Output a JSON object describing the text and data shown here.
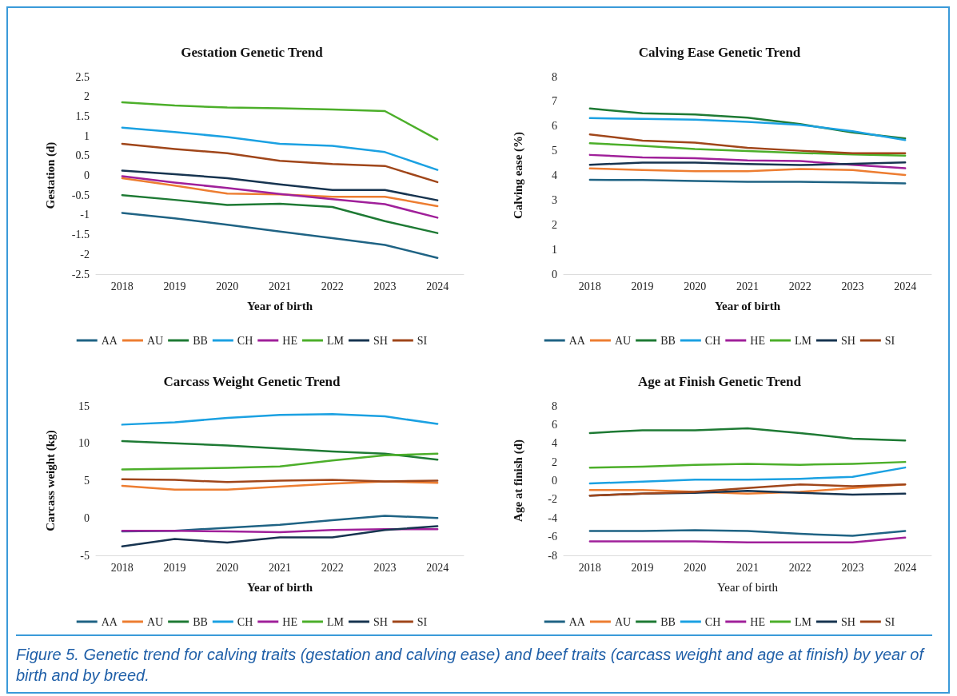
{
  "chart_data": [
    {
      "type": "line",
      "title": "Gestation Genetic Trend",
      "xlabel": "Year of birth",
      "ylabel": "Gestation (d)",
      "categories": [
        "2018",
        "2019",
        "2020",
        "2021",
        "2022",
        "2023",
        "2024"
      ],
      "ylim": [
        -2.5,
        2.5
      ],
      "yticks": [
        -2.5,
        -2,
        -1.5,
        -1,
        -0.5,
        0,
        0.5,
        1,
        1.5,
        2,
        2.5
      ],
      "grid": false,
      "legend": "bottom",
      "marker": "none",
      "series": [
        {
          "name": "AA",
          "color": "#1f6384",
          "values": [
            -0.95,
            -1.09,
            -1.25,
            -1.42,
            -1.59,
            -1.76,
            -2.09
          ]
        },
        {
          "name": "AU",
          "color": "#ed7d31",
          "values": [
            -0.07,
            -0.26,
            -0.46,
            -0.48,
            -0.54,
            -0.54,
            -0.78
          ]
        },
        {
          "name": "BB",
          "color": "#1e7a34",
          "values": [
            -0.5,
            -0.62,
            -0.75,
            -0.72,
            -0.8,
            -1.16,
            -1.46
          ]
        },
        {
          "name": "CH",
          "color": "#1ba1e2",
          "values": [
            1.21,
            1.1,
            0.97,
            0.8,
            0.75,
            0.59,
            0.14
          ]
        },
        {
          "name": "HE",
          "color": "#a0209a",
          "values": [
            -0.02,
            -0.18,
            -0.32,
            -0.47,
            -0.6,
            -0.73,
            -1.07
          ]
        },
        {
          "name": "LM",
          "color": "#4caf2a",
          "values": [
            1.85,
            1.77,
            1.72,
            1.7,
            1.67,
            1.63,
            0.91
          ]
        },
        {
          "name": "SH",
          "color": "#173450",
          "values": [
            0.12,
            0.03,
            -0.07,
            -0.23,
            -0.37,
            -0.37,
            -0.63
          ]
        },
        {
          "name": "SI",
          "color": "#a0461a",
          "values": [
            0.8,
            0.67,
            0.56,
            0.37,
            0.29,
            0.24,
            -0.17
          ]
        }
      ]
    },
    {
      "type": "line",
      "title": "Calving Ease Genetic Trend",
      "xlabel": "Year of birth",
      "ylabel": "Calving ease (%)",
      "categories": [
        "2018",
        "2019",
        "2020",
        "2021",
        "2022",
        "2023",
        "2024"
      ],
      "ylim": [
        0,
        8
      ],
      "yticks": [
        0,
        1,
        2,
        3,
        4,
        5,
        6,
        7,
        8
      ],
      "grid": false,
      "legend": "bottom",
      "marker": "none",
      "series": [
        {
          "name": "AA",
          "color": "#1f6384",
          "values": [
            3.82,
            3.81,
            3.77,
            3.74,
            3.74,
            3.72,
            3.68
          ]
        },
        {
          "name": "AU",
          "color": "#ed7d31",
          "values": [
            4.28,
            4.22,
            4.17,
            4.17,
            4.26,
            4.22,
            4.02
          ]
        },
        {
          "name": "BB",
          "color": "#1e7a34",
          "values": [
            6.71,
            6.52,
            6.47,
            6.34,
            6.08,
            5.74,
            5.5
          ]
        },
        {
          "name": "CH",
          "color": "#1ba1e2",
          "values": [
            6.32,
            6.29,
            6.26,
            6.17,
            6.05,
            5.79,
            5.43
          ]
        },
        {
          "name": "HE",
          "color": "#a0209a",
          "values": [
            4.83,
            4.73,
            4.7,
            4.61,
            4.58,
            4.43,
            4.29
          ]
        },
        {
          "name": "LM",
          "color": "#4caf2a",
          "values": [
            5.3,
            5.2,
            5.07,
            4.99,
            4.91,
            4.85,
            4.8
          ]
        },
        {
          "name": "SH",
          "color": "#173450",
          "values": [
            4.43,
            4.52,
            4.52,
            4.46,
            4.42,
            4.47,
            4.53
          ]
        },
        {
          "name": "SI",
          "color": "#a0461a",
          "values": [
            5.66,
            5.41,
            5.33,
            5.12,
            5.0,
            4.9,
            4.9
          ]
        }
      ]
    },
    {
      "type": "line",
      "title": "Carcass Weight Genetic Trend",
      "xlabel": "Year of birth",
      "ylabel": "Carcass weight (kg)",
      "categories": [
        "2018",
        "2019",
        "2020",
        "2021",
        "2022",
        "2023",
        "2024"
      ],
      "ylim": [
        -5,
        15
      ],
      "yticks": [
        -5,
        0,
        5,
        10,
        15
      ],
      "grid": false,
      "legend": "bottom",
      "marker": "none",
      "series": [
        {
          "name": "AA",
          "color": "#1f6384",
          "values": [
            -1.8,
            -1.7,
            -1.3,
            -0.9,
            -0.3,
            0.3,
            0
          ]
        },
        {
          "name": "AU",
          "color": "#ed7d31",
          "values": [
            4.3,
            3.8,
            3.8,
            4.2,
            4.6,
            4.9,
            4.7
          ]
        },
        {
          "name": "BB",
          "color": "#1e7a34",
          "values": [
            10.3,
            10,
            9.7,
            9.3,
            8.9,
            8.6,
            7.8
          ]
        },
        {
          "name": "CH",
          "color": "#1ba1e2",
          "values": [
            12.5,
            12.8,
            13.4,
            13.8,
            13.9,
            13.6,
            12.6
          ]
        },
        {
          "name": "HE",
          "color": "#a0209a",
          "values": [
            -1.7,
            -1.7,
            -1.8,
            -1.9,
            -1.6,
            -1.5,
            -1.5
          ]
        },
        {
          "name": "LM",
          "color": "#4caf2a",
          "values": [
            6.5,
            6.6,
            6.7,
            6.9,
            7.7,
            8.4,
            8.6
          ]
        },
        {
          "name": "SH",
          "color": "#173450",
          "values": [
            -3.8,
            -2.8,
            -3.3,
            -2.6,
            -2.6,
            -1.6,
            -1.1
          ]
        },
        {
          "name": "SI",
          "color": "#a0461a",
          "values": [
            5.2,
            5.1,
            4.8,
            5,
            5.1,
            4.9,
            5
          ]
        }
      ]
    },
    {
      "type": "line",
      "title": "Age at Finish Genetic Trend",
      "xlabel": "Year of birth",
      "ylabel": "Age at finish (d)",
      "categories": [
        "2018",
        "2019",
        "2020",
        "2021",
        "2022",
        "2023",
        "2024"
      ],
      "ylim": [
        -8,
        8
      ],
      "yticks": [
        -8,
        -6,
        -4,
        -2,
        0,
        2,
        4,
        6,
        8
      ],
      "grid": false,
      "legend": "bottom",
      "marker": "none",
      "annotations": [
        "Figure 5. Genetic trend for calving traits (gestation and calving ease) and beef traits (carcass weight and age at finish) by year of birth and by breed."
      ],
      "series": [
        {
          "name": "AA",
          "color": "#1f6384",
          "values": [
            -5.4,
            -5.4,
            -5.3,
            -5.4,
            -5.7,
            -5.9,
            -5.4
          ]
        },
        {
          "name": "AU",
          "color": "#ed7d31",
          "values": [
            -1,
            -1,
            -1.2,
            -1.4,
            -1.2,
            -0.8,
            -0.4
          ]
        },
        {
          "name": "BB",
          "color": "#1e7a34",
          "values": [
            5.1,
            5.4,
            5.4,
            5.6,
            5.1,
            4.5,
            4.3
          ]
        },
        {
          "name": "CH",
          "color": "#1ba1e2",
          "values": [
            -0.3,
            -0.1,
            0.1,
            0.1,
            0.2,
            0.4,
            1.4
          ]
        },
        {
          "name": "HE",
          "color": "#a0209a",
          "values": [
            -6.5,
            -6.5,
            -6.5,
            -6.6,
            -6.6,
            -6.6,
            -6.1
          ]
        },
        {
          "name": "LM",
          "color": "#4caf2a",
          "values": [
            1.4,
            1.5,
            1.7,
            1.8,
            1.7,
            1.8,
            2
          ]
        },
        {
          "name": "SH",
          "color": "#173450",
          "values": [
            -1.6,
            -1.4,
            -1.3,
            -1.1,
            -1.3,
            -1.5,
            -1.4
          ]
        },
        {
          "name": "SI",
          "color": "#a0461a",
          "values": [
            -1.6,
            -1.4,
            -1.2,
            -0.8,
            -0.4,
            -0.6,
            -0.4
          ]
        }
      ]
    }
  ]
}
